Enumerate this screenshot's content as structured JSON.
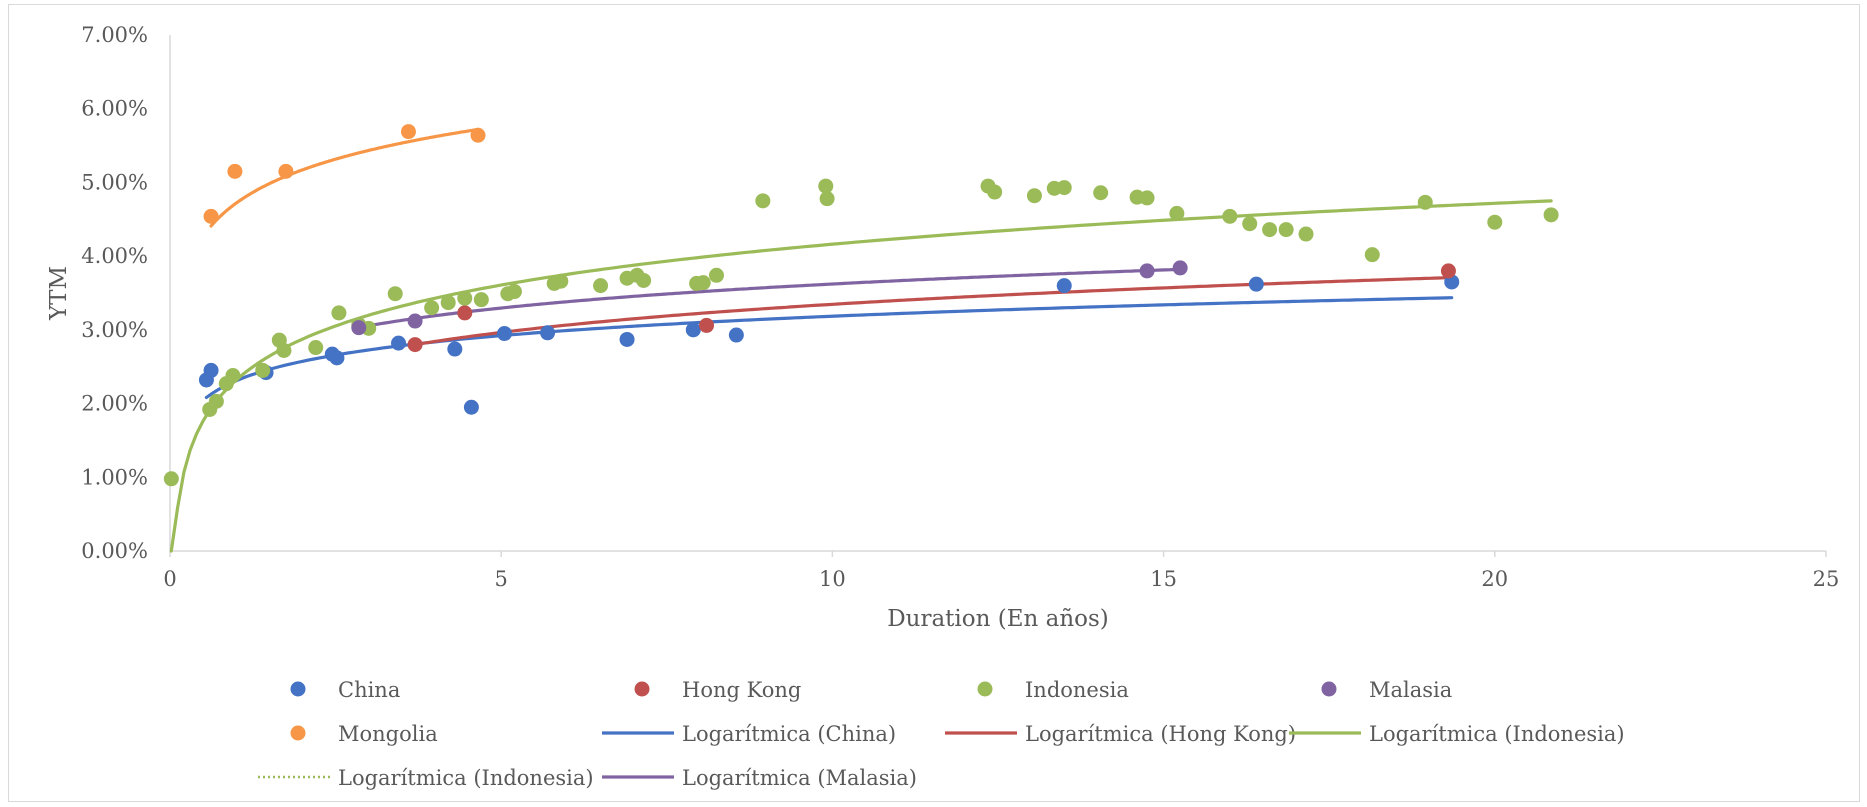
{
  "chart_data": {
    "type": "scatter",
    "title": "",
    "xlabel": "Duration (En años)",
    "ylabel": "YTM",
    "xlim": [
      0,
      25
    ],
    "ylim": [
      0,
      0.07
    ],
    "x_ticks": [
      0,
      5,
      10,
      15,
      20,
      25
    ],
    "x_tick_labels": [
      "0",
      "5",
      "10",
      "15",
      "20",
      "25"
    ],
    "y_ticks": [
      0,
      0.01,
      0.02,
      0.03,
      0.04,
      0.05,
      0.06,
      0.07
    ],
    "y_tick_labels": [
      "0.00%",
      "1.00%",
      "2.00%",
      "3.00%",
      "4.00%",
      "5.00%",
      "6.00%",
      "7.00%"
    ],
    "grid": false,
    "legend_position": "bottom",
    "series": [
      {
        "name": "China",
        "kind": "points",
        "color": "#4472C4",
        "points": [
          [
            0.55,
            0.0232
          ],
          [
            0.62,
            0.0245
          ],
          [
            1.45,
            0.0242
          ],
          [
            2.45,
            0.0267
          ],
          [
            2.52,
            0.0262
          ],
          [
            3.45,
            0.0282
          ],
          [
            4.3,
            0.0274
          ],
          [
            4.55,
            0.0195
          ],
          [
            5.05,
            0.0295
          ],
          [
            5.7,
            0.0296
          ],
          [
            6.9,
            0.0287
          ],
          [
            7.9,
            0.03
          ],
          [
            8.55,
            0.0293
          ],
          [
            13.5,
            0.036
          ],
          [
            16.4,
            0.0362
          ],
          [
            19.35,
            0.0365
          ]
        ]
      },
      {
        "name": "Hong Kong",
        "kind": "points",
        "color": "#C0504D",
        "points": [
          [
            3.7,
            0.028
          ],
          [
            4.45,
            0.0323
          ],
          [
            8.1,
            0.0306
          ],
          [
            19.3,
            0.038
          ]
        ]
      },
      {
        "name": "Indonesia",
        "kind": "points",
        "color": "#9BBB59",
        "points": [
          [
            0.02,
            0.0098
          ],
          [
            0.6,
            0.0192
          ],
          [
            0.7,
            0.0203
          ],
          [
            0.85,
            0.0227
          ],
          [
            0.95,
            0.0238
          ],
          [
            1.4,
            0.0245
          ],
          [
            1.65,
            0.0286
          ],
          [
            1.72,
            0.0272
          ],
          [
            2.2,
            0.0276
          ],
          [
            2.55,
            0.0323
          ],
          [
            2.85,
            0.0307
          ],
          [
            3.0,
            0.0302
          ],
          [
            3.4,
            0.0349
          ],
          [
            3.95,
            0.033
          ],
          [
            4.2,
            0.0337
          ],
          [
            4.45,
            0.0343
          ],
          [
            4.7,
            0.0341
          ],
          [
            5.1,
            0.0349
          ],
          [
            5.2,
            0.0352
          ],
          [
            5.8,
            0.0363
          ],
          [
            5.9,
            0.0366
          ],
          [
            6.5,
            0.036
          ],
          [
            6.9,
            0.037
          ],
          [
            7.05,
            0.0374
          ],
          [
            7.15,
            0.0367
          ],
          [
            7.95,
            0.0363
          ],
          [
            8.05,
            0.0364
          ],
          [
            8.25,
            0.0374
          ],
          [
            8.95,
            0.0475
          ],
          [
            9.9,
            0.0495
          ],
          [
            9.92,
            0.0478
          ],
          [
            12.35,
            0.0495
          ],
          [
            12.45,
            0.0487
          ],
          [
            13.05,
            0.0482
          ],
          [
            13.35,
            0.0492
          ],
          [
            13.5,
            0.0493
          ],
          [
            14.05,
            0.0486
          ],
          [
            14.6,
            0.048
          ],
          [
            14.75,
            0.0479
          ],
          [
            15.2,
            0.0458
          ],
          [
            16.0,
            0.0454
          ],
          [
            16.3,
            0.0444
          ],
          [
            16.6,
            0.0436
          ],
          [
            16.85,
            0.0436
          ],
          [
            17.15,
            0.043
          ],
          [
            18.15,
            0.0402
          ],
          [
            18.95,
            0.0473
          ],
          [
            20.0,
            0.0446
          ],
          [
            20.85,
            0.0456
          ]
        ]
      },
      {
        "name": "Malasia",
        "kind": "points",
        "color": "#8064A2",
        "points": [
          [
            2.85,
            0.0303
          ],
          [
            3.7,
            0.0312
          ],
          [
            14.75,
            0.038
          ],
          [
            15.25,
            0.0384
          ]
        ]
      },
      {
        "name": "Mongolia",
        "kind": "points",
        "color": "#F79646",
        "points": [
          [
            0.62,
            0.0454
          ],
          [
            0.98,
            0.0515
          ],
          [
            1.75,
            0.0515
          ],
          [
            3.6,
            0.0569
          ],
          [
            4.65,
            0.0564
          ]
        ]
      },
      {
        "name": "Logarítmica (China)",
        "kind": "trend",
        "color": "#4472C4",
        "a": 0.0231,
        "b": 0.0038,
        "x_range": [
          0.55,
          19.35
        ]
      },
      {
        "name": "Logarítmica (Hong Kong)",
        "kind": "trend",
        "color": "#C0504D",
        "a": 0.0208,
        "b": 0.0055,
        "x_range": [
          3.7,
          19.3
        ]
      },
      {
        "name": "Logarítmica (Indonesia)",
        "kind": "trend",
        "color": "#9BBB59",
        "a": 0.0232,
        "b": 0.008,
        "x_range": [
          0.02,
          20.85
        ]
      },
      {
        "name": "Logarítmica (Indonesia)",
        "kind": "trend-dotted",
        "color": "#9BBB59",
        "legend_only": true
      },
      {
        "name": "Logarítmica (Malasia)",
        "kind": "trend",
        "color": "#8064A2",
        "a": 0.0254,
        "b": 0.0047,
        "x_range": [
          2.85,
          15.25
        ]
      },
      {
        "name": "Logarítmica (Mongolia)",
        "kind": "trend",
        "color": "#F79646",
        "a": 0.0472,
        "b": 0.0065,
        "x_range": [
          0.62,
          4.65
        ],
        "in_legend": false
      }
    ]
  }
}
